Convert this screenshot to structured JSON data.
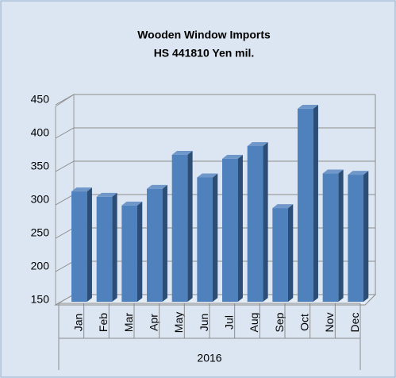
{
  "chart_data": {
    "type": "bar",
    "title": "Wooden Window Imports",
    "subtitle": "HS 441810 Yen mil.",
    "categories": [
      "Jan",
      "Feb",
      "Mar",
      "Apr",
      "May",
      "Jun",
      "Jul",
      "Aug",
      "Sep",
      "Oct",
      "Nov",
      "Dec"
    ],
    "category_group": "2016",
    "values": [
      313,
      305,
      292,
      317,
      368,
      334,
      362,
      381,
      288,
      437,
      340,
      338
    ],
    "color": "#4f81bd",
    "ylim": [
      150,
      450
    ],
    "yticks": [
      150,
      200,
      250,
      300,
      350,
      400,
      450
    ],
    "grid": true
  }
}
